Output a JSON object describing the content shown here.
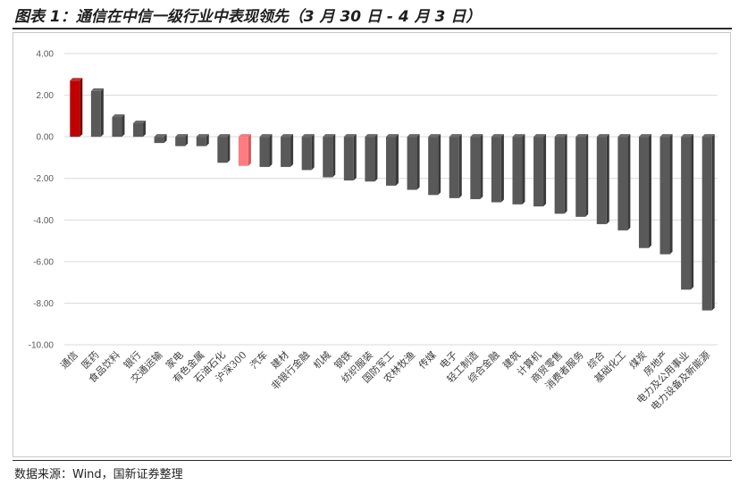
{
  "figure": {
    "title": "图表 1：通信在中信一级行业中表现领先（3 月 30 日 - 4 月 3 日）",
    "source": "数据来源：Wind，国新证券整理"
  },
  "colors": {
    "highlight": "#c00000",
    "benchmark": "#ff7c80",
    "default": "#595959",
    "grid": "#d9d9d9"
  },
  "chart_data": {
    "type": "bar",
    "title": "",
    "xlabel": "",
    "ylabel": "",
    "ylim": [
      -10,
      4
    ],
    "yticks": [
      "4.00",
      "2.00",
      "0.00",
      "-2.00",
      "-4.00",
      "-6.00",
      "-8.00",
      "-10.00"
    ],
    "grid": true,
    "legend": "none",
    "categories": [
      "通信",
      "医药",
      "食品饮料",
      "银行",
      "交通运输",
      "家电",
      "有色金属",
      "石油石化",
      "沪深300",
      "汽车",
      "建材",
      "非银行金融",
      "机械",
      "钢铁",
      "纺织服装",
      "国防军工",
      "农林牧渔",
      "传媒",
      "电子",
      "轻工制造",
      "综合金融",
      "建筑",
      "计算机",
      "商贸零售",
      "消费者服务",
      "综合",
      "基础化工",
      "煤炭",
      "房地产",
      "电力及公用事业",
      "电力设备及新能源"
    ],
    "values": [
      2.7,
      2.2,
      0.95,
      0.65,
      -0.3,
      -0.45,
      -0.45,
      -1.25,
      -1.4,
      -1.45,
      -1.45,
      -1.6,
      -1.95,
      -2.1,
      -2.15,
      -2.35,
      -2.55,
      -2.8,
      -2.95,
      -3.0,
      -3.15,
      -3.25,
      -3.35,
      -3.7,
      -3.85,
      -4.2,
      -4.5,
      -5.35,
      -5.65,
      -7.35,
      -8.35
    ],
    "highlight": [
      "通信",
      "沪深300"
    ]
  }
}
